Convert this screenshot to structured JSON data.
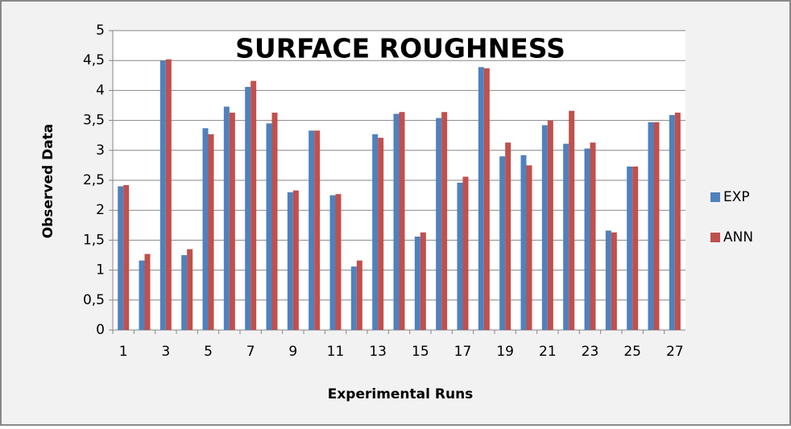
{
  "chart_data": {
    "type": "bar",
    "title": "SURFACE ROUGHNESS",
    "x_label": "Experimental Runs",
    "y_label": "Observed Data",
    "categories": [
      "1",
      null,
      "3",
      null,
      "5",
      null,
      "7",
      null,
      "9",
      null,
      "11",
      null,
      "13",
      null,
      "15",
      null,
      "17",
      null,
      "19",
      null,
      "21",
      null,
      "23",
      null,
      "25",
      null,
      "27"
    ],
    "series": [
      {
        "name": "EXP",
        "color": "#4f81bd",
        "values": [
          2.4,
          1.16,
          4.5,
          1.25,
          3.37,
          3.73,
          4.06,
          3.45,
          2.3,
          3.33,
          2.25,
          1.06,
          3.27,
          3.61,
          1.56,
          3.54,
          2.46,
          4.39,
          2.9,
          2.92,
          3.42,
          3.11,
          3.03,
          1.66,
          2.73,
          3.47,
          3.59
        ]
      },
      {
        "name": "ANN",
        "color": "#c0504d",
        "values": [
          2.42,
          1.27,
          4.52,
          1.35,
          3.27,
          3.63,
          4.16,
          3.63,
          2.33,
          3.33,
          2.27,
          1.16,
          3.21,
          3.64,
          1.63,
          3.64,
          2.56,
          4.37,
          3.13,
          2.75,
          3.5,
          3.66,
          3.13,
          1.63,
          2.73,
          3.47,
          3.63
        ]
      }
    ],
    "ylim": [
      0,
      5
    ],
    "yticks": [
      0,
      {
        "value": 0.5,
        "label": "0,5"
      },
      1,
      {
        "value": 1.5,
        "label": "1,5"
      },
      2,
      {
        "value": 2.5,
        "label": "2,5"
      },
      3,
      {
        "value": 3.5,
        "label": "3,5"
      },
      4,
      {
        "value": 4.5,
        "label": "4,5"
      },
      5
    ],
    "grid": true,
    "legend": "right"
  }
}
